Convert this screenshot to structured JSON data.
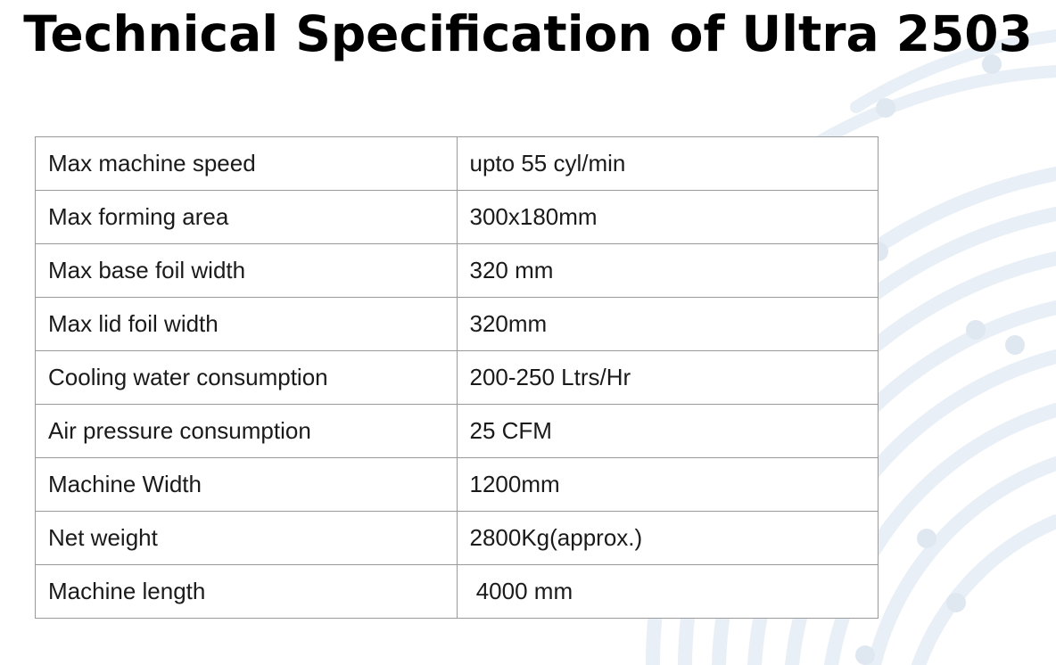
{
  "page": {
    "title": "Technical Specification of Ultra 2503"
  },
  "specs": {
    "rows": [
      {
        "label": "Max machine speed",
        "value": "upto 55 cyl/min"
      },
      {
        "label": "Max forming area",
        "value": "300x180mm"
      },
      {
        "label": "Max base foil width",
        "value": "320 mm"
      },
      {
        "label": "Max lid foil width",
        "value": "320mm"
      },
      {
        "label": "Cooling water consumption",
        "value": "200-250 Ltrs/Hr"
      },
      {
        "label": "Air pressure consumption",
        "value": "25 CFM"
      },
      {
        "label": "Machine Width",
        "value": "1200mm"
      },
      {
        "label": "Net weight",
        "value": "2800Kg(approx.)"
      },
      {
        "label": "Machine length",
        "value": " 4000 mm"
      }
    ]
  },
  "colors": {
    "title_text": "#000000",
    "table_border": "#9a9a9a",
    "decor_arcs": "#e6edf5"
  }
}
